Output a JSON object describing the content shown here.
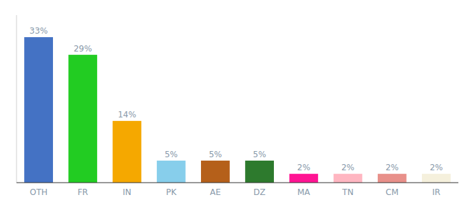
{
  "chart_data": {
    "type": "bar",
    "categories": [
      "OTH",
      "FR",
      "IN",
      "PK",
      "AE",
      "DZ",
      "MA",
      "TN",
      "CM",
      "IR"
    ],
    "values": [
      33,
      29,
      14,
      5,
      5,
      5,
      2,
      2,
      2,
      2
    ],
    "value_labels": [
      "33%",
      "29%",
      "14%",
      "5%",
      "5%",
      "5%",
      "2%",
      "2%",
      "2%",
      "2%"
    ],
    "colors": [
      "#4472c4",
      "#22cc22",
      "#f5a800",
      "#87ceeb",
      "#b5601a",
      "#2d7a2d",
      "#ff1493",
      "#ffb6c1",
      "#e8908a",
      "#f5f0dc"
    ],
    "ylim": [
      0,
      38
    ],
    "grid": false,
    "data_labels": true,
    "tick_labels": "x"
  }
}
